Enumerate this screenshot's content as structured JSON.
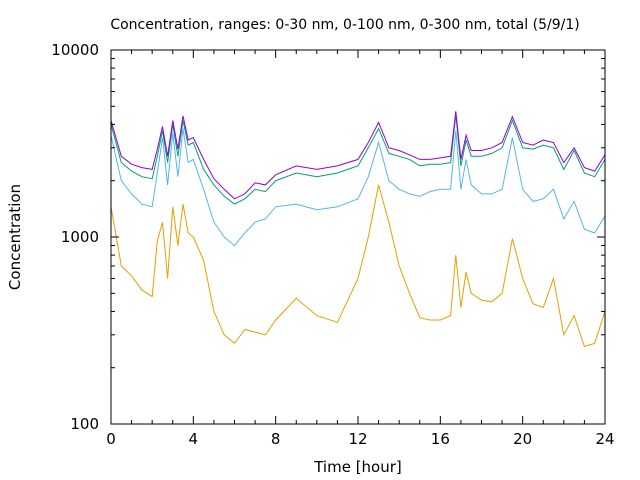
{
  "chart_data": {
    "type": "line",
    "title": "Concentration, ranges: 0-30 nm, 0-100 nm, 0-300 nm, total (5/9/1)",
    "xlabel": "Time [hour]",
    "ylabel": "Concentration",
    "xlim": [
      0,
      24
    ],
    "ylim": [
      100,
      10000
    ],
    "yscale": "log",
    "xticks": [
      "0",
      "4",
      "8",
      "12",
      "16",
      "20",
      "24"
    ],
    "xtick_values": [
      0,
      4,
      8,
      12,
      16,
      20,
      24
    ],
    "yticks": [
      "100",
      "1000",
      "10000"
    ],
    "ytick_values": [
      100,
      1000,
      10000
    ],
    "grid": false,
    "x": [
      0,
      0.5,
      1,
      1.5,
      2,
      2.25,
      2.5,
      2.75,
      3,
      3.25,
      3.5,
      3.75,
      4,
      4.5,
      5,
      5.5,
      6,
      6.5,
      7,
      7.5,
      8,
      9,
      10,
      11,
      12,
      12.5,
      13,
      13.5,
      14,
      14.5,
      15,
      15.5,
      16,
      16.5,
      16.75,
      17,
      17.25,
      17.5,
      18,
      18.5,
      19,
      19.5,
      20,
      20.5,
      21,
      21.5,
      22,
      22.5,
      23,
      23.5,
      24
    ],
    "series": [
      {
        "color": "#e69f00",
        "values": [
          1450,
          700,
          620,
          520,
          480,
          950,
          1200,
          600,
          1450,
          900,
          1500,
          1050,
          1000,
          750,
          400,
          300,
          270,
          320,
          310,
          300,
          360,
          470,
          380,
          350,
          600,
          1000,
          1900,
          1200,
          700,
          500,
          370,
          360,
          360,
          380,
          800,
          420,
          650,
          500,
          460,
          450,
          500,
          980,
          600,
          440,
          420,
          600,
          300,
          380,
          260,
          270,
          400
        ]
      },
      {
        "color": "#56b4e9",
        "values": [
          3500,
          2000,
          1700,
          1500,
          1450,
          2200,
          3400,
          1900,
          3600,
          2100,
          3800,
          2500,
          2600,
          1800,
          1200,
          1000,
          900,
          1050,
          1200,
          1250,
          1450,
          1500,
          1400,
          1450,
          1600,
          2100,
          3200,
          2000,
          1800,
          1700,
          1650,
          1750,
          1800,
          1800,
          3700,
          1800,
          2600,
          1900,
          1700,
          1700,
          1800,
          3400,
          1800,
          1550,
          1600,
          1800,
          1250,
          1550,
          1100,
          1050,
          1300
        ]
      },
      {
        "color": "#009e73",
        "values": [
          4000,
          2500,
          2250,
          2100,
          2050,
          2700,
          3700,
          2500,
          4000,
          2700,
          4200,
          3100,
          3200,
          2300,
          1900,
          1650,
          1500,
          1600,
          1800,
          1750,
          2000,
          2200,
          2100,
          2200,
          2400,
          3000,
          3800,
          2800,
          2700,
          2600,
          2400,
          2450,
          2450,
          2500,
          4500,
          2400,
          3300,
          2700,
          2700,
          2800,
          3000,
          4200,
          3000,
          2950,
          3100,
          3000,
          2300,
          2900,
          2200,
          2100,
          2600
        ]
      },
      {
        "color": "#9400d3",
        "values": [
          4200,
          2700,
          2450,
          2350,
          2300,
          2950,
          3900,
          2700,
          4200,
          2950,
          4450,
          3300,
          3400,
          2600,
          2050,
          1800,
          1600,
          1700,
          1950,
          1900,
          2150,
          2400,
          2300,
          2400,
          2600,
          3200,
          4100,
          3000,
          2900,
          2750,
          2600,
          2600,
          2650,
          2700,
          4700,
          2600,
          3500,
          2900,
          2900,
          3000,
          3200,
          4400,
          3200,
          3100,
          3300,
          3200,
          2500,
          3000,
          2350,
          2250,
          2750
        ]
      }
    ]
  }
}
